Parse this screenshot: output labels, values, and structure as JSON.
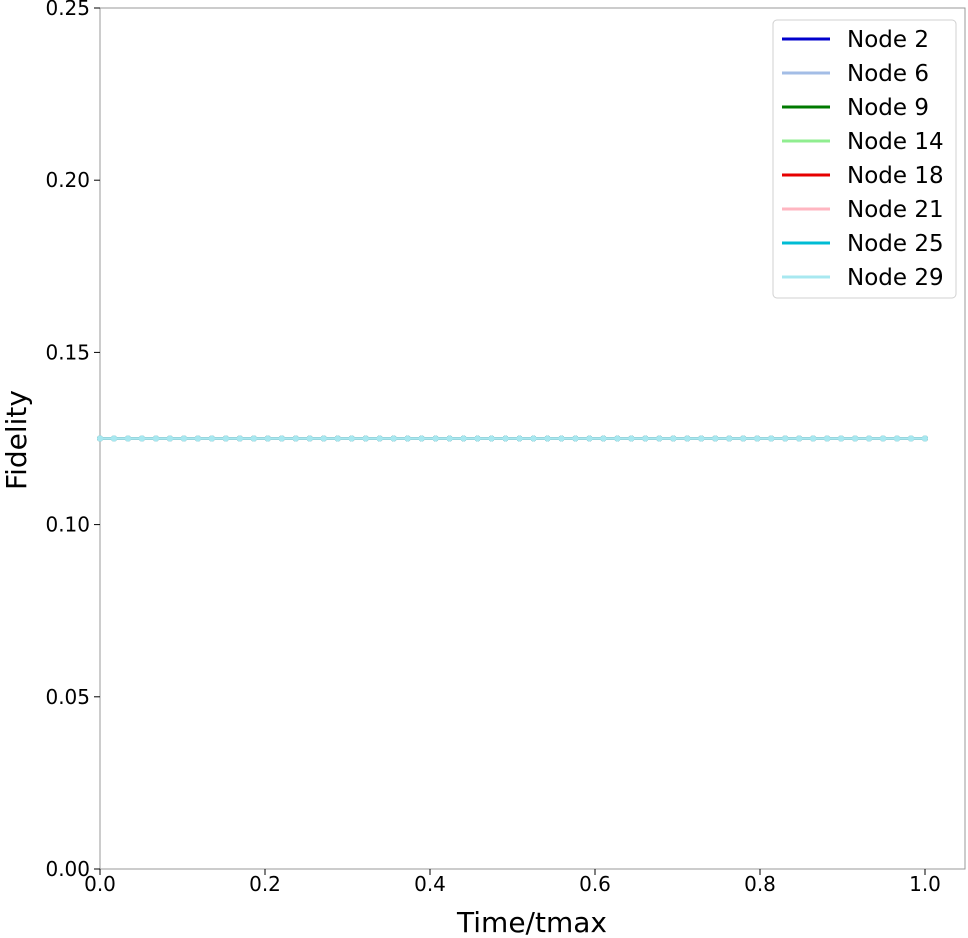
{
  "chart_data": {
    "type": "line",
    "title": "",
    "xlabel": "Time/tmax",
    "ylabel": "Fidelity",
    "xlim": [
      0.0,
      1.0
    ],
    "ylim": [
      0.0,
      0.25
    ],
    "x_ticks": [
      "0.0",
      "0.2",
      "0.4",
      "0.6",
      "0.8",
      "1.0"
    ],
    "y_ticks": [
      "0.00",
      "0.05",
      "0.10",
      "0.15",
      "0.20",
      "0.25"
    ],
    "grid": false,
    "legend_position": "top-right",
    "x_samples": 60,
    "series": [
      {
        "name": "Node 2",
        "color": "#0000cc",
        "value": 0.125
      },
      {
        "name": "Node 6",
        "color": "#a3bde6",
        "value": 0.125
      },
      {
        "name": "Node 9",
        "color": "#007a00",
        "value": 0.125
      },
      {
        "name": "Node 14",
        "color": "#90ee90",
        "value": 0.125
      },
      {
        "name": "Node 18",
        "color": "#e60000",
        "value": 0.125
      },
      {
        "name": "Node 21",
        "color": "#ffb6c1",
        "value": 0.125
      },
      {
        "name": "Node 25",
        "color": "#00bcd4",
        "value": 0.125
      },
      {
        "name": "Node 29",
        "color": "#a8e8f0",
        "value": 0.125
      }
    ]
  }
}
